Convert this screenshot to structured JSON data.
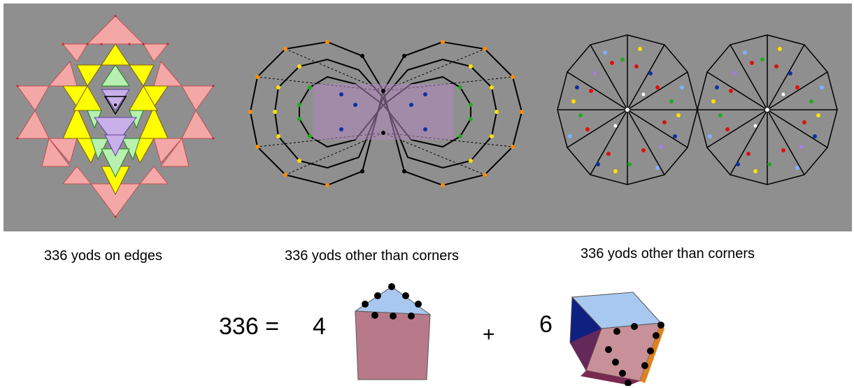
{
  "captions": {
    "yantra": "336 yods on edges",
    "polygons_middle": "336 yods other than corners",
    "polygons_right": "336 yods other than corners"
  },
  "equation": {
    "lhs": "336 =",
    "coef_1": "4",
    "plus": "+",
    "coef_2": "6"
  },
  "colors": {
    "panel": "#8f8f8f",
    "pink": "#f4a7a7",
    "yellow": "#ffff00",
    "light_green": "#b8f0b0",
    "lavender": "#c8b0e8",
    "edge_line": "#000000",
    "yod_orange": "#ff8c00",
    "yod_yellow": "#ffe000",
    "yod_green": "#22aa22",
    "yod_blue": "#1030a0",
    "yod_red": "#dd1010",
    "yod_light_blue": "#80b0ff",
    "yod_white": "#ffffff",
    "yod_purple": "#a080e0",
    "solid_top": "#a8c8f0",
    "solid_side": "#b87a8a",
    "solid_dark": "#7a2a50",
    "solid_navy": "#102080",
    "solid_orange": "#e08020"
  }
}
